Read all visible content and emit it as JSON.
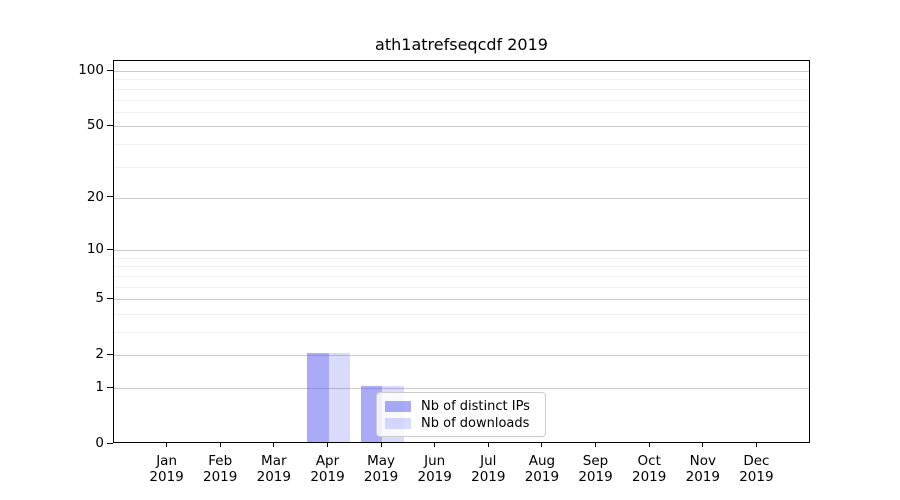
{
  "chart_data": {
    "type": "bar",
    "title": "ath1atrefseqcdf 2019",
    "xlabel": "",
    "ylabel": "",
    "yscale": "log1p",
    "ylim": [
      0,
      113
    ],
    "yticks": [
      0,
      1,
      2,
      5,
      10,
      20,
      50,
      100
    ],
    "minor_yticks": [
      3,
      4,
      6,
      7,
      8,
      9,
      30,
      40,
      60,
      70,
      80,
      90
    ],
    "grid": true,
    "legend_position": "lower center",
    "categories": [
      {
        "label": "Jan",
        "sub": "2019"
      },
      {
        "label": "Feb",
        "sub": "2019"
      },
      {
        "label": "Mar",
        "sub": "2019"
      },
      {
        "label": "Apr",
        "sub": "2019"
      },
      {
        "label": "May",
        "sub": "2019"
      },
      {
        "label": "Jun",
        "sub": "2019"
      },
      {
        "label": "Jul",
        "sub": "2019"
      },
      {
        "label": "Aug",
        "sub": "2019"
      },
      {
        "label": "Sep",
        "sub": "2019"
      },
      {
        "label": "Oct",
        "sub": "2019"
      },
      {
        "label": "Nov",
        "sub": "2019"
      },
      {
        "label": "Dec",
        "sub": "2019"
      }
    ],
    "series": [
      {
        "name": "Nb of distinct IPs",
        "color": "rgba(85,85,240,0.5)",
        "color_hex_on_white": "#aaaaf7",
        "values": [
          0,
          0,
          0,
          2,
          1,
          0,
          0,
          0,
          0,
          0,
          0,
          0
        ]
      },
      {
        "name": "Nb of downloads",
        "color": "rgba(85,85,240,0.22)",
        "color_hex_on_white": "#dadaf9",
        "values": [
          0,
          0,
          0,
          2,
          1,
          0,
          0,
          0,
          0,
          0,
          0,
          0
        ]
      }
    ],
    "colors": {
      "major_grid": "#cbcbcb",
      "minor_grid": "#efefef",
      "spine": "#000000",
      "background": "#ffffff"
    }
  }
}
